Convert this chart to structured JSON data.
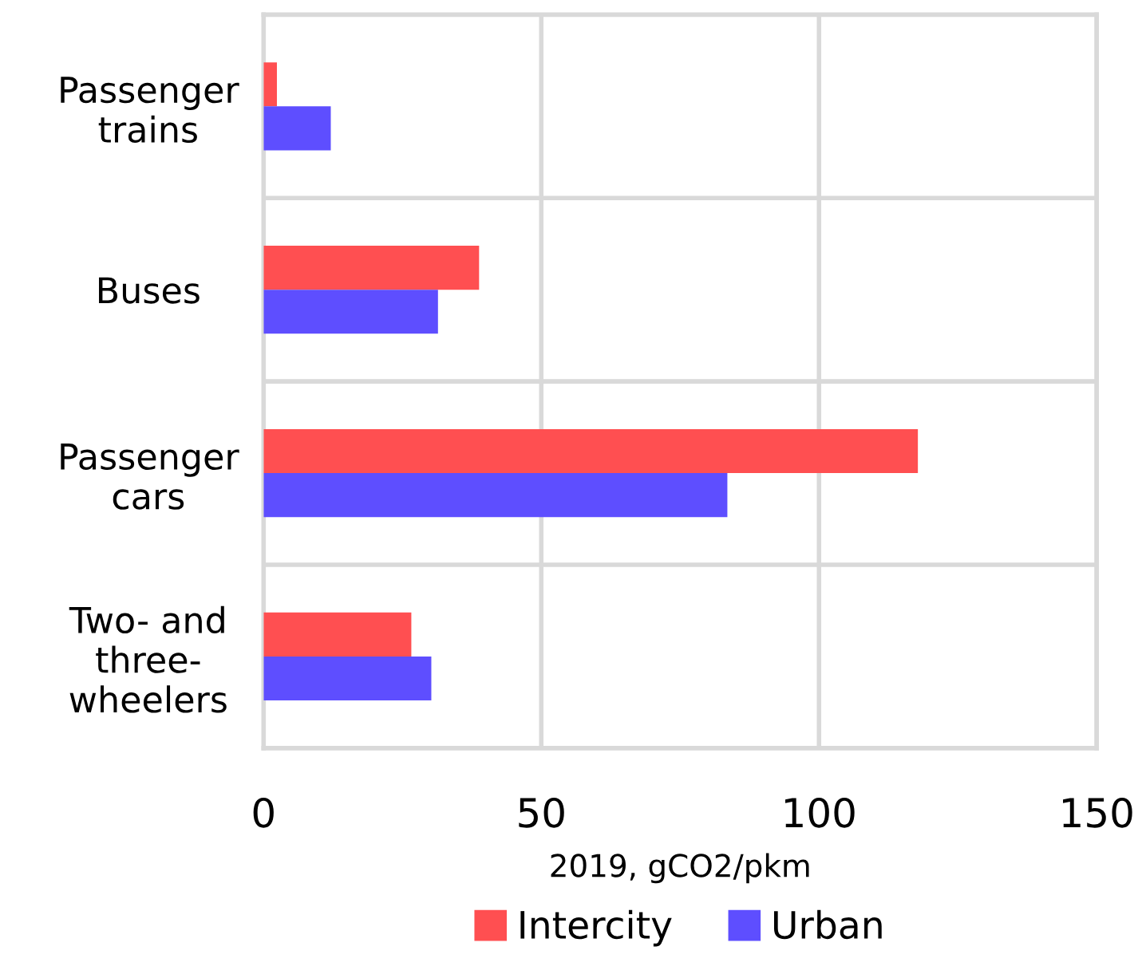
{
  "chart_data": {
    "type": "bar",
    "orientation": "horizontal",
    "categories": [
      "Passenger\ntrains",
      "Buses",
      "Passenger\ncars",
      "Two- and\nthree-\nwheelers"
    ],
    "series": [
      {
        "name": "Intercity",
        "color": "#ff4f51",
        "values": [
          2.4,
          38.8,
          117.8,
          26.6
        ]
      },
      {
        "name": "Urban",
        "color": "#5e4eff",
        "values": [
          12.1,
          31.4,
          83.5,
          30.2
        ]
      }
    ],
    "xlabel": "2019, gCO2/pkm",
    "xlim": [
      0,
      150
    ],
    "xticks": [
      0,
      50,
      100,
      150
    ],
    "grid": true,
    "legend": "bottom"
  }
}
